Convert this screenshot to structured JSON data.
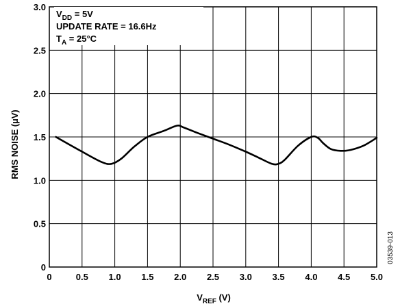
{
  "chart_data": {
    "type": "line",
    "xlabel": {
      "main": "V",
      "sub": "REF",
      "unit": " (V)"
    },
    "ylabel": "RMS NOISE (µV)",
    "xlim": [
      0,
      5.0
    ],
    "ylim": [
      0,
      3.0
    ],
    "x_ticks": [
      "0",
      "0.5",
      "1.0",
      "1.5",
      "2.0",
      "2.5",
      "3.0",
      "3.5",
      "4.0",
      "4.5",
      "5.0"
    ],
    "y_ticks": [
      "0",
      "0.5",
      "1.0",
      "1.5",
      "2.0",
      "2.5",
      "3.0"
    ],
    "grid": true,
    "annotations": {
      "vdd": {
        "main": "V",
        "sub": "DD",
        "rest": " = 5V"
      },
      "update_rate": "UPDATE RATE = 16.6Hz",
      "ta": {
        "main": "T",
        "sub": "A",
        "rest": " = 25°C"
      }
    },
    "figure_code": "03539-013",
    "series": [
      {
        "x": [
          0.1,
          0.5,
          0.8,
          0.95,
          1.1,
          1.3,
          1.5,
          1.75,
          1.95,
          2.05,
          2.25,
          2.5,
          2.75,
          3.0,
          3.2,
          3.4,
          3.5,
          3.6,
          3.8,
          4.0,
          4.1,
          4.18,
          4.3,
          4.45,
          4.6,
          4.8,
          5.0
        ],
        "y": [
          1.5,
          1.33,
          1.21,
          1.19,
          1.25,
          1.39,
          1.5,
          1.57,
          1.63,
          1.61,
          1.55,
          1.48,
          1.41,
          1.33,
          1.26,
          1.19,
          1.19,
          1.24,
          1.4,
          1.5,
          1.49,
          1.43,
          1.36,
          1.34,
          1.35,
          1.4,
          1.49
        ]
      }
    ]
  }
}
